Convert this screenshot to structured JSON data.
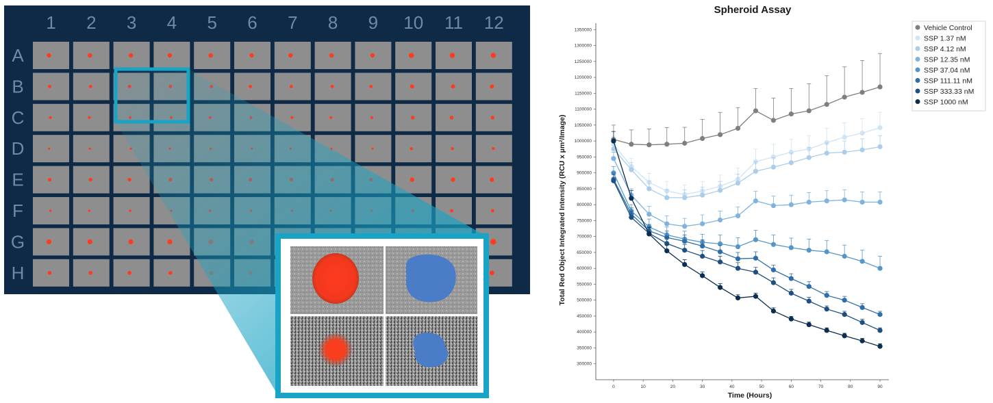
{
  "plate": {
    "columns": [
      "1",
      "2",
      "3",
      "4",
      "5",
      "6",
      "7",
      "8",
      "9",
      "10",
      "11",
      "12"
    ],
    "rows": [
      "A",
      "B",
      "C",
      "D",
      "E",
      "F",
      "G",
      "H"
    ],
    "well_color": "#8e8e8e",
    "spot_color": "#ff3b1f",
    "background": "#0f2a47",
    "highlight_color": "#19a3c4",
    "segmentation_color": "#4a7cc7"
  },
  "chart_data": {
    "type": "line",
    "title": "Spheroid Assay",
    "xlabel": "Time (Hours)",
    "ylabel": "Total Red Object Integrated Intensity (RCU x µm²/Image)",
    "xlim": [
      -6,
      93
    ],
    "ylim": [
      250000,
      1370000
    ],
    "xticks": [
      0,
      10,
      20,
      30,
      40,
      50,
      60,
      70,
      80,
      90
    ],
    "yticks": [
      300000,
      350000,
      400000,
      450000,
      500000,
      550000,
      600000,
      650000,
      700000,
      750000,
      800000,
      850000,
      900000,
      950000,
      1000000,
      1050000,
      1100000,
      1150000,
      1200000,
      1250000,
      1300000,
      1350000
    ],
    "ytick_labels": [
      "300000",
      "350000",
      "400000",
      "450000",
      "500000",
      "550000",
      "600000",
      "650000",
      "700000",
      "750000",
      "800000",
      "850000",
      "900000",
      "950000",
      "1000000",
      "1050000",
      "1100000",
      "1150000",
      "1200000",
      "1250000",
      "1300000",
      "1350000"
    ],
    "legend_position": "top-right",
    "x": [
      0,
      6,
      12,
      18,
      24,
      30,
      36,
      42,
      48,
      54,
      60,
      66,
      72,
      78,
      84,
      90
    ],
    "series": [
      {
        "name": "Vehicle Control",
        "color": "#7f7f7f",
        "values": [
          1005000,
          990000,
          988000,
          990000,
          993000,
          1008000,
          1020000,
          1040000,
          1095000,
          1065000,
          1085000,
          1095000,
          1115000,
          1138000,
          1153000,
          1170000
        ],
        "errors": [
          45000,
          45000,
          50000,
          52000,
          50000,
          60000,
          70000,
          65000,
          70000,
          70000,
          80000,
          85000,
          90000,
          95000,
          100000,
          105000
        ]
      },
      {
        "name": "SSP 1.37 nM",
        "color": "#cfe4f4",
        "values": [
          990000,
          920000,
          870000,
          843000,
          832000,
          843000,
          858000,
          880000,
          935000,
          950000,
          965000,
          975000,
          995000,
          1012000,
          1025000,
          1042000
        ],
        "errors": [
          25000,
          25000,
          28000,
          30000,
          30000,
          30000,
          35000,
          35000,
          40000,
          40000,
          40000,
          42000,
          45000,
          45000,
          45000,
          48000
        ]
      },
      {
        "name": "SSP 4.12 nM",
        "color": "#a9cdea",
        "values": [
          975000,
          910000,
          850000,
          822000,
          822000,
          830000,
          845000,
          868000,
          905000,
          918000,
          932000,
          948000,
          962000,
          965000,
          972000,
          982000
        ],
        "errors": [
          20000,
          22000,
          25000,
          25000,
          25000,
          25000,
          28000,
          28000,
          30000,
          30000,
          30000,
          32000,
          32000,
          35000,
          35000,
          35000
        ]
      },
      {
        "name": "SSP 12.35 nM",
        "color": "#7fb3de",
        "values": [
          945000,
          830000,
          770000,
          740000,
          732000,
          740000,
          752000,
          765000,
          812000,
          797000,
          800000,
          808000,
          812000,
          815000,
          808000,
          808000
        ],
        "errors": [
          20000,
          20000,
          25000,
          25000,
          25000,
          28000,
          28000,
          28000,
          30000,
          30000,
          30000,
          30000,
          32000,
          32000,
          32000,
          32000
        ]
      },
      {
        "name": "SSP 37.04 nM",
        "color": "#5596c9",
        "values": [
          900000,
          780000,
          730000,
          705000,
          692000,
          682000,
          677000,
          668000,
          690000,
          675000,
          665000,
          657000,
          652000,
          638000,
          622000,
          600000
        ],
        "errors": [
          20000,
          20000,
          25000,
          25000,
          25000,
          25000,
          28000,
          28000,
          30000,
          30000,
          30000,
          35000,
          35000,
          35000,
          35000,
          38000
        ]
      },
      {
        "name": "SSP 111.11 nM",
        "color": "#2f6ea8",
        "values": [
          880000,
          770000,
          718000,
          697000,
          685000,
          670000,
          652000,
          630000,
          632000,
          595000,
          568000,
          543000,
          515000,
          500000,
          477000,
          455000
        ],
        "errors": [
          20000,
          20000,
          20000,
          20000,
          20000,
          20000,
          20000,
          20000,
          20000,
          15000,
          15000,
          15000,
          12000,
          12000,
          12000,
          10000
        ]
      },
      {
        "name": "SSP 333.33 nM",
        "color": "#1d4f80",
        "values": [
          875000,
          760000,
          710000,
          678000,
          657000,
          638000,
          620000,
          600000,
          588000,
          555000,
          522000,
          497000,
          472000,
          455000,
          430000,
          405000
        ],
        "errors": [
          20000,
          20000,
          20000,
          20000,
          18000,
          18000,
          18000,
          18000,
          15000,
          15000,
          12000,
          12000,
          10000,
          10000,
          10000,
          8000
        ]
      },
      {
        "name": "SSP 1000 nM",
        "color": "#0b2d50",
        "values": [
          1000000,
          820000,
          708000,
          655000,
          612000,
          577000,
          540000,
          507000,
          512000,
          466000,
          441000,
          423000,
          405000,
          388000,
          372000,
          355000
        ],
        "errors": [
          30000,
          25000,
          20000,
          18000,
          15000,
          12000,
          12000,
          10000,
          10000,
          10000,
          8000,
          8000,
          8000,
          8000,
          8000,
          8000
        ]
      }
    ]
  }
}
